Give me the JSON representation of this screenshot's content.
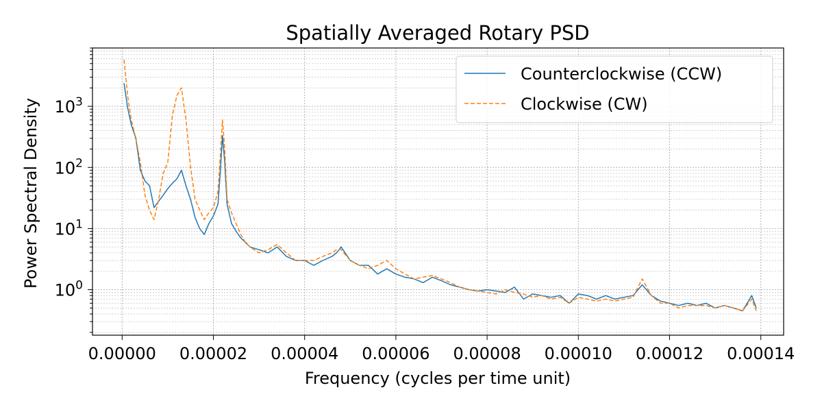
{
  "chart_data": {
    "type": "line",
    "title": "Spatially Averaged Rotary PSD",
    "xlabel": "Frequency (cycles per time unit)",
    "ylabel": "Power Spectral Density",
    "xlim": [
      -6.5e-06,
      0.000145
    ],
    "ylim": [
      0.18,
      9000
    ],
    "yscale": "log",
    "grid": true,
    "legend_position": "top-right",
    "x_ticks": [
      {
        "value": 0,
        "label": "0.00000"
      },
      {
        "value": 2e-05,
        "label": "0.00002"
      },
      {
        "value": 4e-05,
        "label": "0.00004"
      },
      {
        "value": 6e-05,
        "label": "0.00006"
      },
      {
        "value": 8e-05,
        "label": "0.00008"
      },
      {
        "value": 0.0001,
        "label": "0.00010"
      },
      {
        "value": 0.00012,
        "label": "0.00012"
      },
      {
        "value": 0.00014,
        "label": "0.00014"
      }
    ],
    "y_ticks": [
      {
        "value": 1,
        "base": "10",
        "exp": "0"
      },
      {
        "value": 10,
        "base": "10",
        "exp": "1"
      },
      {
        "value": 100,
        "base": "10",
        "exp": "2"
      },
      {
        "value": 1000,
        "base": "10",
        "exp": "3"
      }
    ],
    "x": [
      4e-07,
      1.2e-06,
      2e-06,
      3e-06,
      4e-06,
      5e-06,
      6e-06,
      7e-06,
      8e-06,
      9e-06,
      1e-05,
      1.1e-05,
      1.2e-05,
      1.3e-05,
      1.4e-05,
      1.5e-05,
      1.6e-05,
      1.7e-05,
      1.8e-05,
      1.9e-05,
      2e-05,
      2.1e-05,
      2.15e-05,
      2.2e-05,
      2.25e-05,
      2.3e-05,
      2.4e-05,
      2.5e-05,
      2.6e-05,
      2.7e-05,
      2.8e-05,
      3e-05,
      3.2e-05,
      3.4e-05,
      3.6e-05,
      3.8e-05,
      4e-05,
      4.2e-05,
      4.4e-05,
      4.6e-05,
      4.7e-05,
      4.8e-05,
      5e-05,
      5.2e-05,
      5.4e-05,
      5.6e-05,
      5.8e-05,
      6e-05,
      6.2e-05,
      6.4e-05,
      6.6e-05,
      6.8e-05,
      7e-05,
      7.2e-05,
      7.4e-05,
      7.6e-05,
      7.8e-05,
      8e-05,
      8.2e-05,
      8.4e-05,
      8.6e-05,
      8.8e-05,
      9e-05,
      9.2e-05,
      9.4e-05,
      9.6e-05,
      9.8e-05,
      0.0001,
      0.000102,
      0.000104,
      0.000106,
      0.000108,
      0.00011,
      0.000112,
      0.000114,
      0.000116,
      0.000118,
      0.00012,
      0.000122,
      0.000124,
      0.000126,
      0.000128,
      0.00013,
      0.000132,
      0.000134,
      0.000136,
      0.000138,
      0.000139
    ],
    "series": [
      {
        "name": "Counterclockwise (CCW)",
        "color": "#1f77b4",
        "style": "solid",
        "values": [
          2400,
          950,
          500,
          300,
          90,
          60,
          50,
          22,
          28,
          35,
          45,
          55,
          65,
          90,
          50,
          30,
          15,
          10,
          8,
          12,
          16,
          25,
          80,
          330,
          120,
          25,
          12,
          9,
          7,
          6,
          5,
          4.5,
          4,
          5,
          3.5,
          3,
          3,
          2.5,
          3,
          3.5,
          4,
          5,
          3,
          2.5,
          2.5,
          1.8,
          2.2,
          1.8,
          1.6,
          1.5,
          1.3,
          1.6,
          1.4,
          1.2,
          1.1,
          1.0,
          0.95,
          1.0,
          0.95,
          0.9,
          1.1,
          0.7,
          0.85,
          0.8,
          0.75,
          0.8,
          0.6,
          0.85,
          0.8,
          0.7,
          0.8,
          0.7,
          0.75,
          0.8,
          1.2,
          0.8,
          0.65,
          0.6,
          0.55,
          0.6,
          0.55,
          0.6,
          0.5,
          0.55,
          0.5,
          0.45,
          0.8,
          0.5
        ]
      },
      {
        "name": "Clockwise (CW)",
        "color": "#ff7f0e",
        "style": "dashed",
        "values": [
          5800,
          1500,
          600,
          300,
          120,
          35,
          20,
          14,
          30,
          80,
          120,
          700,
          1500,
          2000,
          600,
          100,
          30,
          20,
          14,
          18,
          22,
          40,
          150,
          600,
          200,
          30,
          18,
          12,
          8,
          6,
          5,
          4,
          4.5,
          5.5,
          4,
          3,
          3,
          3,
          3.5,
          4,
          4.5,
          4.5,
          3,
          2.5,
          2.2,
          2.5,
          3,
          2.2,
          1.8,
          1.5,
          1.6,
          1.7,
          1.5,
          1.3,
          1.1,
          1.0,
          0.95,
          0.9,
          0.85,
          1.0,
          0.9,
          0.85,
          0.75,
          0.8,
          0.7,
          0.75,
          0.6,
          0.75,
          0.7,
          0.65,
          0.7,
          0.65,
          0.7,
          0.75,
          1.5,
          0.8,
          0.6,
          0.6,
          0.5,
          0.55,
          0.55,
          0.55,
          0.5,
          0.55,
          0.5,
          0.45,
          0.7,
          0.45
        ]
      }
    ]
  }
}
